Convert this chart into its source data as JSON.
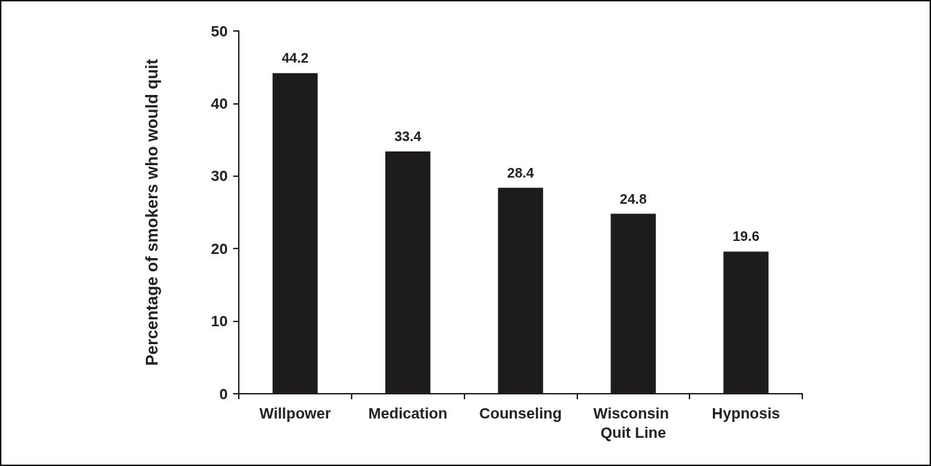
{
  "chart_data": {
    "type": "bar",
    "ylabel": "Percentage of smokers who would quit",
    "categories": [
      "Willpower",
      "Medication",
      "Counseling",
      "Wisconsin Quit Line",
      "Hypnosis"
    ],
    "values": [
      44.2,
      33.4,
      28.4,
      24.8,
      19.6
    ],
    "color": "#1e1b1c",
    "ylim": [
      0,
      50
    ],
    "yticks": [
      0,
      10,
      20,
      30,
      40,
      50
    ],
    "grid": false,
    "data_labels": true
  }
}
